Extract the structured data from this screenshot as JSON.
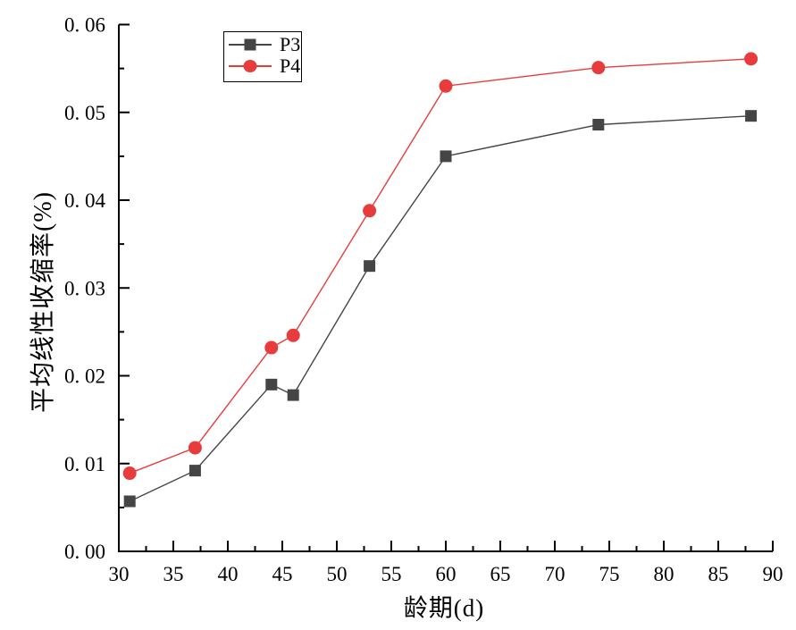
{
  "chart_data": {
    "type": "line",
    "title": "",
    "xlabel": "龄期(d)",
    "ylabel": "平均线性收缩率(%)",
    "xlim": [
      30,
      90
    ],
    "ylim": [
      0,
      0.06
    ],
    "grid": false,
    "background": "#ffffff",
    "axis_color": "#000000",
    "x": [
      31,
      37,
      44,
      46,
      53,
      60,
      74,
      88
    ],
    "series": [
      {
        "name": "P3",
        "marker": "square",
        "color": "#454545",
        "values": [
          0.0057,
          0.0092,
          0.019,
          0.0178,
          0.0325,
          0.045,
          0.0486,
          0.0496
        ]
      },
      {
        "name": "P4",
        "marker": "circle",
        "color": "#e83c3c",
        "values": [
          0.0089,
          0.0118,
          0.0232,
          0.0246,
          0.0388,
          0.053,
          0.0551,
          0.0561
        ]
      }
    ],
    "x_major_ticks": [
      30,
      35,
      40,
      45,
      50,
      55,
      60,
      65,
      70,
      75,
      80,
      85,
      90
    ],
    "x_tick_labels": [
      "30",
      "35",
      "40",
      "45",
      "50",
      "55",
      "60",
      "65",
      "70",
      "75",
      "80",
      "85",
      "90"
    ],
    "x_minor_ticks": [
      32.5,
      37.5,
      42.5,
      47.5,
      52.5,
      57.5,
      62.5,
      67.5,
      72.5,
      77.5,
      82.5,
      87.5
    ],
    "y_major_ticks": [
      0,
      0.01,
      0.02,
      0.03,
      0.04,
      0.05,
      0.06
    ],
    "y_tick_labels": [
      "0. 00",
      "0. 01",
      "0. 02",
      "0. 03",
      "0. 04",
      "0. 05",
      "0. 06"
    ],
    "y_minor_ticks": [
      0.005,
      0.015,
      0.025,
      0.035,
      0.045,
      0.055
    ],
    "legend": {
      "position": "top-center-left",
      "entries": [
        "P3",
        "P4"
      ]
    }
  }
}
